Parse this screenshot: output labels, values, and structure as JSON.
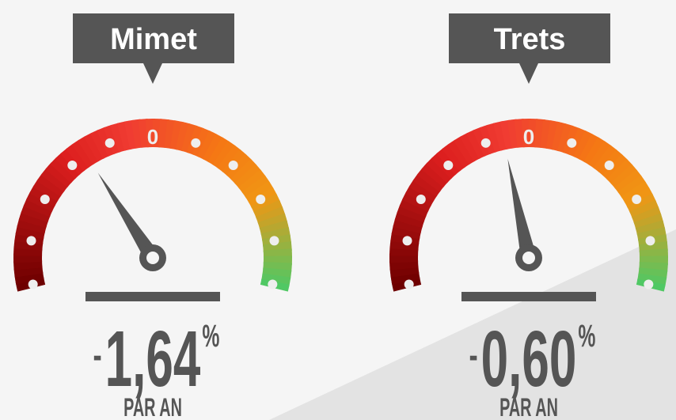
{
  "gauges": [
    {
      "name": "Mimet",
      "zero_tick": 0,
      "sign": "-",
      "number": "1,64",
      "unit": "%",
      "caption": "PAR AN",
      "value": -1.64
    },
    {
      "name": "Trets",
      "zero_tick": 0,
      "sign": "-",
      "number": "0,60",
      "unit": "%",
      "caption": "PAR AN",
      "value": -0.6
    }
  ]
}
